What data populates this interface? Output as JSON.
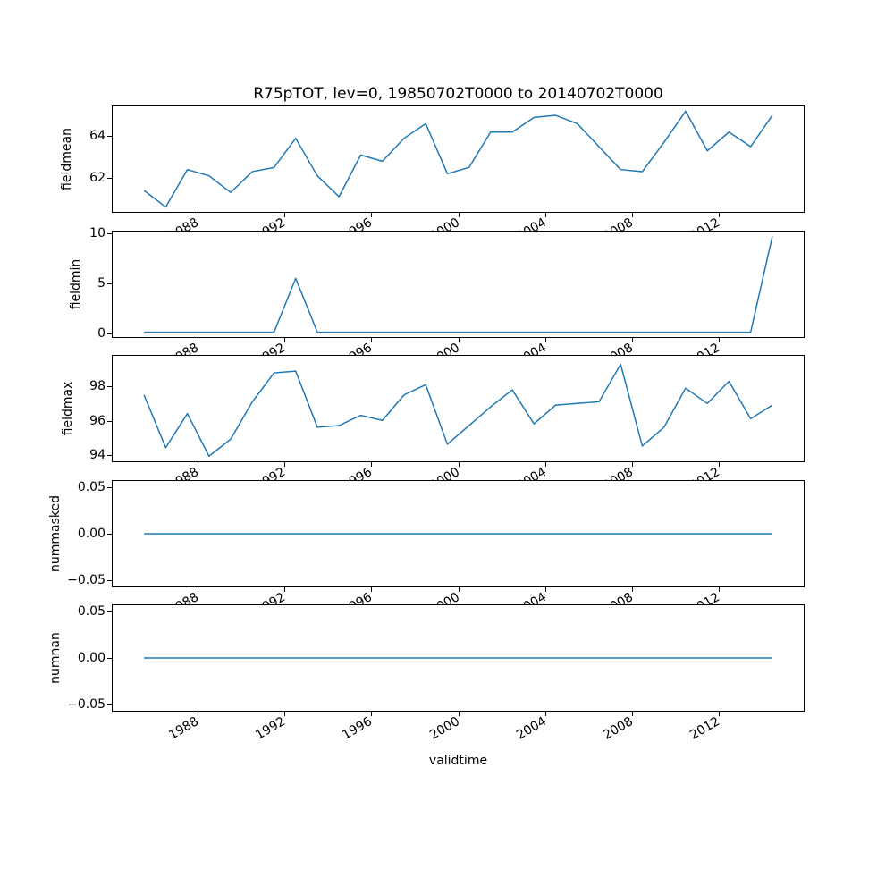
{
  "chart_data": {
    "type": "line",
    "title": "R75pTOT, lev=0, 19850702T0000 to 20140702T0000",
    "xlabel": "validtime",
    "line_color": "#1f77b4",
    "background_color": "#ffffff",
    "grid": false,
    "legend": false,
    "x": [
      1985.5,
      1986.5,
      1987.5,
      1988.5,
      1989.5,
      1990.5,
      1991.5,
      1992.5,
      1993.5,
      1994.5,
      1995.5,
      1996.5,
      1997.5,
      1998.5,
      1999.5,
      2000.5,
      2001.5,
      2002.5,
      2003.5,
      2004.5,
      2005.5,
      2006.5,
      2007.5,
      2008.5,
      2009.5,
      2010.5,
      2011.5,
      2012.5,
      2013.5,
      2014.5
    ],
    "xlim": [
      1984.05,
      2015.95
    ],
    "xticks": [
      {
        "value": 1988,
        "label": "1988"
      },
      {
        "value": 1992,
        "label": "1992"
      },
      {
        "value": 1996,
        "label": "1996"
      },
      {
        "value": 2000,
        "label": "2000"
      },
      {
        "value": 2004,
        "label": "2004"
      },
      {
        "value": 2008,
        "label": "2008"
      },
      {
        "value": 2012,
        "label": "2012"
      }
    ],
    "subplots": [
      {
        "name": "fieldmean",
        "ylabel": "fieldmean",
        "ylim": [
          60.37,
          65.43
        ],
        "yticks": [
          {
            "value": 62,
            "label": "62"
          },
          {
            "value": 64,
            "label": "64"
          }
        ],
        "values": [
          61.4,
          60.6,
          62.4,
          62.1,
          61.3,
          62.3,
          62.5,
          63.9,
          62.1,
          61.1,
          63.1,
          62.8,
          63.9,
          64.6,
          62.2,
          62.5,
          64.2,
          64.2,
          64.9,
          65.0,
          64.6,
          63.5,
          62.4,
          62.3,
          63.7,
          65.2,
          63.3,
          64.2,
          63.5,
          65.0
        ]
      },
      {
        "name": "fieldmin",
        "ylabel": "fieldmin",
        "ylim": [
          -0.49,
          10.29
        ],
        "yticks": [
          {
            "value": 0,
            "label": "0"
          },
          {
            "value": 5,
            "label": "5"
          },
          {
            "value": 10,
            "label": "10"
          }
        ],
        "values": [
          0,
          0,
          0,
          0,
          0,
          0,
          0,
          5.5,
          0,
          0,
          0,
          0,
          0,
          0,
          0,
          0,
          0,
          0,
          0,
          0,
          0,
          0,
          0,
          0,
          0,
          0,
          0,
          0,
          0,
          9.8
        ]
      },
      {
        "name": "fieldmax",
        "ylabel": "fieldmax",
        "ylim": [
          93.6,
          99.8
        ],
        "yticks": [
          {
            "value": 94,
            "label": "94"
          },
          {
            "value": 96,
            "label": "96"
          },
          {
            "value": 98,
            "label": "98"
          }
        ],
        "values": [
          97.5,
          94.4,
          96.4,
          93.9,
          94.9,
          97.1,
          98.8,
          98.9,
          95.6,
          95.7,
          96.3,
          96.0,
          97.5,
          98.1,
          94.6,
          95.7,
          96.8,
          97.8,
          95.8,
          96.9,
          97.0,
          97.1,
          99.3,
          94.5,
          95.6,
          97.9,
          97.0,
          98.3,
          96.1,
          96.9
        ]
      },
      {
        "name": "nummasked",
        "ylabel": "nummasked",
        "ylim": [
          -0.0578,
          0.0578
        ],
        "yticks": [
          {
            "value": -0.05,
            "label": "−0.05"
          },
          {
            "value": 0,
            "label": "0.00"
          },
          {
            "value": 0.05,
            "label": "0.05"
          }
        ],
        "values": [
          0,
          0,
          0,
          0,
          0,
          0,
          0,
          0,
          0,
          0,
          0,
          0,
          0,
          0,
          0,
          0,
          0,
          0,
          0,
          0,
          0,
          0,
          0,
          0,
          0,
          0,
          0,
          0,
          0,
          0
        ]
      },
      {
        "name": "numnan",
        "ylabel": "numnan",
        "ylim": [
          -0.0578,
          0.0578
        ],
        "yticks": [
          {
            "value": -0.05,
            "label": "−0.05"
          },
          {
            "value": 0,
            "label": "0.00"
          },
          {
            "value": 0.05,
            "label": "0.05"
          }
        ],
        "values": [
          0,
          0,
          0,
          0,
          0,
          0,
          0,
          0,
          0,
          0,
          0,
          0,
          0,
          0,
          0,
          0,
          0,
          0,
          0,
          0,
          0,
          0,
          0,
          0,
          0,
          0,
          0,
          0,
          0,
          0
        ]
      }
    ]
  }
}
